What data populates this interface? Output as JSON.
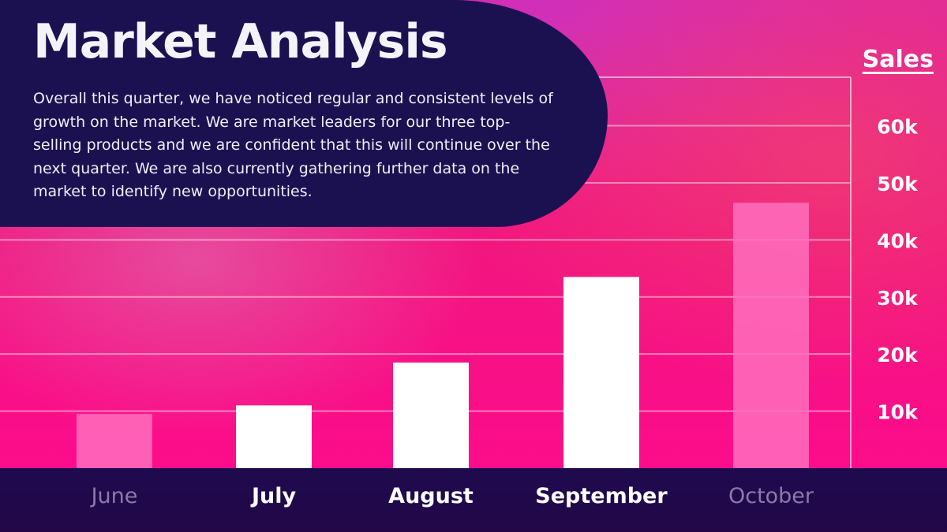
{
  "header": {
    "title": "Market Analysis",
    "summary": "Overall this quarter, we have noticed regular and consistent levels of growth on the market. We are market leaders for our three top-selling products and we are confident that this will continue over the next quarter. We are also currently gathering further data on the market to identify new opportunities."
  },
  "colors": {
    "header_bg": "#1c1150",
    "footer_bg": "#1e0a4e",
    "bar_solid": "#ffffff",
    "bar_faded": "#ff6fbd",
    "label_bright": "#ffffff",
    "label_dim": "#8a7aa8",
    "grid": "#ffffff"
  },
  "chart_data": {
    "type": "bar",
    "title": "Market Analysis",
    "xlabel": "",
    "ylabel": "Sales",
    "categories": [
      "June",
      "July",
      "August",
      "September",
      "October"
    ],
    "values": [
      9500,
      11000,
      18500,
      33500,
      46500
    ],
    "highlighted": [
      false,
      true,
      true,
      true,
      false
    ],
    "ylim": [
      0,
      68500
    ],
    "yticks": [
      10000,
      20000,
      30000,
      40000,
      50000,
      60000
    ],
    "ytick_labels": [
      "10k",
      "20k",
      "30k",
      "40k",
      "50k",
      "60k"
    ],
    "y_axis_side": "right",
    "grid": true
  }
}
